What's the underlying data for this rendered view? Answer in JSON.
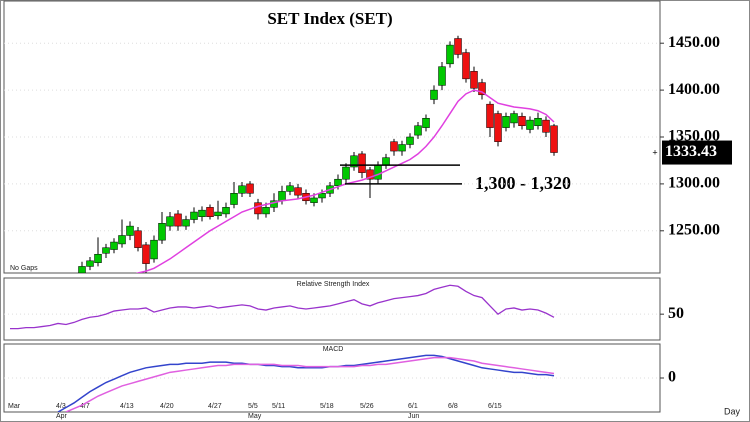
{
  "chart_data": [
    {
      "type": "candlestick",
      "title": "SET  Index  (SET)",
      "note": "No Gaps",
      "annotation": "1,300 - 1,320",
      "support_levels": [
        1320,
        1300
      ],
      "categories": [
        "Mar",
        null,
        null,
        null,
        null,
        null,
        "4/3",
        null,
        null,
        "4/7",
        null,
        null,
        null,
        null,
        "4/13",
        null,
        null,
        null,
        null,
        "4/20",
        null,
        null,
        null,
        null,
        null,
        "4/27",
        null,
        null,
        null,
        null,
        "5/5",
        null,
        null,
        "5/11",
        null,
        null,
        null,
        null,
        null,
        "5/18",
        null,
        null,
        null,
        null,
        "5/26",
        null,
        null,
        null,
        null,
        null,
        "6/1",
        null,
        null,
        null,
        null,
        "6/8",
        null,
        null,
        null,
        null,
        "6/15",
        null,
        null,
        null,
        null,
        null,
        null,
        null,
        null
      ],
      "months": [
        null,
        null,
        null,
        null,
        null,
        null,
        "Apr",
        null,
        null,
        null,
        null,
        null,
        null,
        null,
        null,
        null,
        null,
        null,
        null,
        null,
        null,
        null,
        null,
        null,
        null,
        null,
        null,
        null,
        null,
        null,
        "May",
        null,
        null,
        null,
        null,
        null,
        null,
        null,
        null,
        null,
        null,
        null,
        null,
        null,
        null,
        null,
        null,
        null,
        null,
        null,
        "Jun",
        null,
        null,
        null,
        null,
        null,
        null,
        null,
        null,
        null,
        null,
        null,
        null,
        null,
        null,
        null,
        null,
        null,
        null
      ],
      "open": [
        null,
        null,
        null,
        null,
        null,
        null,
        null,
        null,
        null,
        1205,
        1212,
        1216,
        1226,
        1230,
        1236,
        1245,
        1250,
        1235,
        1220,
        1240,
        1255,
        1268,
        1255,
        1262,
        1265,
        1275,
        1266,
        1268,
        1278,
        1290,
        1300,
        1280,
        1268,
        1275,
        1282,
        1292,
        1296,
        1290,
        1280,
        1285,
        1290,
        1298,
        1305,
        1318,
        1332,
        1315,
        1305,
        1320,
        1345,
        1335,
        1342,
        1352,
        1360,
        1390,
        1405,
        1428,
        1455,
        1440,
        1420,
        1408,
        1385,
        1375,
        1360,
        1365,
        1372,
        1358,
        1362,
        1368,
        1362
      ],
      "high": [
        null,
        null,
        null,
        null,
        null,
        null,
        null,
        null,
        null,
        1217,
        1222,
        1243,
        1236,
        1242,
        1262,
        1260,
        1254,
        1238,
        1245,
        1270,
        1270,
        1272,
        1266,
        1275,
        1276,
        1278,
        1282,
        1280,
        1302,
        1302,
        1303,
        1284,
        1280,
        1290,
        1298,
        1302,
        1300,
        1294,
        1290,
        1294,
        1302,
        1310,
        1322,
        1334,
        1335,
        1318,
        1324,
        1332,
        1348,
        1346,
        1354,
        1366,
        1374,
        1405,
        1430,
        1452,
        1458,
        1444,
        1425,
        1412,
        1388,
        1378,
        1376,
        1378,
        1376,
        1372,
        1376,
        1372,
        1364
      ],
      "low": [
        null,
        null,
        null,
        null,
        null,
        null,
        null,
        null,
        null,
        1200,
        1208,
        1212,
        1221,
        1226,
        1232,
        1240,
        1228,
        1205,
        1216,
        1236,
        1250,
        1250,
        1251,
        1258,
        1260,
        1262,
        1262,
        1264,
        1274,
        1286,
        1286,
        1262,
        1264,
        1270,
        1278,
        1288,
        1284,
        1278,
        1276,
        1280,
        1286,
        1294,
        1300,
        1314,
        1306,
        1285,
        1300,
        1316,
        1330,
        1330,
        1338,
        1348,
        1356,
        1385,
        1400,
        1424,
        1434,
        1408,
        1398,
        1390,
        1350,
        1340,
        1356,
        1360,
        1358,
        1354,
        1358,
        1350,
        1330
      ],
      "close": [
        null,
        null,
        null,
        null,
        null,
        null,
        null,
        null,
        null,
        1212,
        1218,
        1225,
        1232,
        1238,
        1245,
        1255,
        1232,
        1215,
        1240,
        1258,
        1265,
        1255,
        1262,
        1270,
        1272,
        1265,
        1270,
        1275,
        1290,
        1298,
        1290,
        1268,
        1275,
        1282,
        1292,
        1298,
        1288,
        1282,
        1285,
        1290,
        1298,
        1305,
        1318,
        1330,
        1312,
        1305,
        1320,
        1328,
        1335,
        1342,
        1350,
        1362,
        1370,
        1400,
        1425,
        1448,
        1438,
        1412,
        1402,
        1395,
        1360,
        1345,
        1372,
        1375,
        1362,
        1368,
        1370,
        1355,
        1333.43
      ],
      "ma": [
        null,
        null,
        null,
        null,
        null,
        null,
        null,
        null,
        null,
        null,
        null,
        null,
        null,
        1195,
        1198,
        1202,
        1205,
        1207,
        1210,
        1215,
        1220,
        1226,
        1232,
        1238,
        1244,
        1250,
        1255,
        1260,
        1265,
        1270,
        1273,
        1276,
        1278,
        1280,
        1282,
        1283,
        1284,
        1286,
        1288,
        1291,
        1294,
        1297,
        1300,
        1302,
        1304,
        1307,
        1310,
        1314,
        1318,
        1322,
        1326,
        1332,
        1340,
        1350,
        1362,
        1375,
        1388,
        1396,
        1400,
        1398,
        1392,
        1386,
        1384,
        1382,
        1381,
        1380,
        1378,
        1374,
        1366
      ],
      "up_color": "#00c800",
      "down_color": "#ee1111",
      "ma_color": "#e040e0",
      "ylim": [
        1205,
        1495
      ],
      "yticks": [
        {
          "value": 1250,
          "label": "1250.00"
        },
        {
          "value": 1300,
          "label": "1300.00"
        },
        {
          "value": 1350,
          "label": "1350.00"
        },
        {
          "value": 1400,
          "label": "1400.00"
        },
        {
          "value": 1450,
          "label": "1450.00"
        }
      ]
    },
    {
      "type": "line",
      "title": "Relative Strength Index",
      "color": "#9933cc",
      "values": [
        36,
        36,
        37,
        37,
        38,
        39,
        41,
        40,
        42,
        45,
        47,
        48,
        50,
        53,
        54,
        55,
        55,
        56,
        52,
        54,
        56,
        57,
        57,
        56,
        57,
        58,
        56,
        57,
        58,
        59,
        58,
        55,
        54,
        56,
        57,
        58,
        56,
        55,
        56,
        57,
        58,
        60,
        62,
        64,
        60,
        58,
        61,
        63,
        65,
        66,
        67,
        68,
        70,
        74,
        76,
        78,
        77,
        72,
        68,
        66,
        58,
        50,
        55,
        56,
        54,
        55,
        54,
        51,
        47
      ],
      "ylim": [
        25,
        85
      ],
      "yticks": [
        50
      ]
    },
    {
      "type": "line",
      "title": "MACD",
      "x_label": "Day",
      "series": [
        {
          "color": "#3344cc",
          "values": [
            null,
            null,
            null,
            null,
            null,
            null,
            -30,
            -26,
            -22,
            -17,
            -12,
            -8,
            -4,
            -1,
            2,
            5,
            7,
            9,
            10,
            11,
            12,
            12,
            13,
            13,
            13,
            14,
            14,
            14,
            13,
            13,
            12,
            12,
            11,
            11,
            10,
            10,
            9,
            9,
            9,
            9,
            10,
            10,
            11,
            11,
            12,
            13,
            14,
            15,
            16,
            17,
            18,
            19,
            20,
            20,
            19,
            17,
            15,
            13,
            11,
            9,
            8,
            7,
            6,
            5,
            5,
            4,
            3,
            3,
            2
          ]
        },
        {
          "color": "#e060e0",
          "values": [
            null,
            null,
            null,
            null,
            null,
            null,
            null,
            -30,
            -27,
            -24,
            -20,
            -16,
            -13,
            -10,
            -7,
            -5,
            -3,
            -1,
            1,
            3,
            5,
            6,
            7,
            8,
            9,
            10,
            11,
            11,
            12,
            12,
            12,
            12,
            12,
            12,
            11,
            11,
            11,
            10,
            10,
            10,
            10,
            10,
            10,
            10,
            11,
            11,
            12,
            12,
            13,
            14,
            15,
            16,
            17,
            18,
            18,
            18,
            17,
            16,
            15,
            13,
            12,
            11,
            10,
            9,
            8,
            7,
            6,
            5,
            4
          ]
        }
      ],
      "ylim": [
        -30,
        30
      ],
      "yticks": [
        0
      ]
    }
  ]
}
